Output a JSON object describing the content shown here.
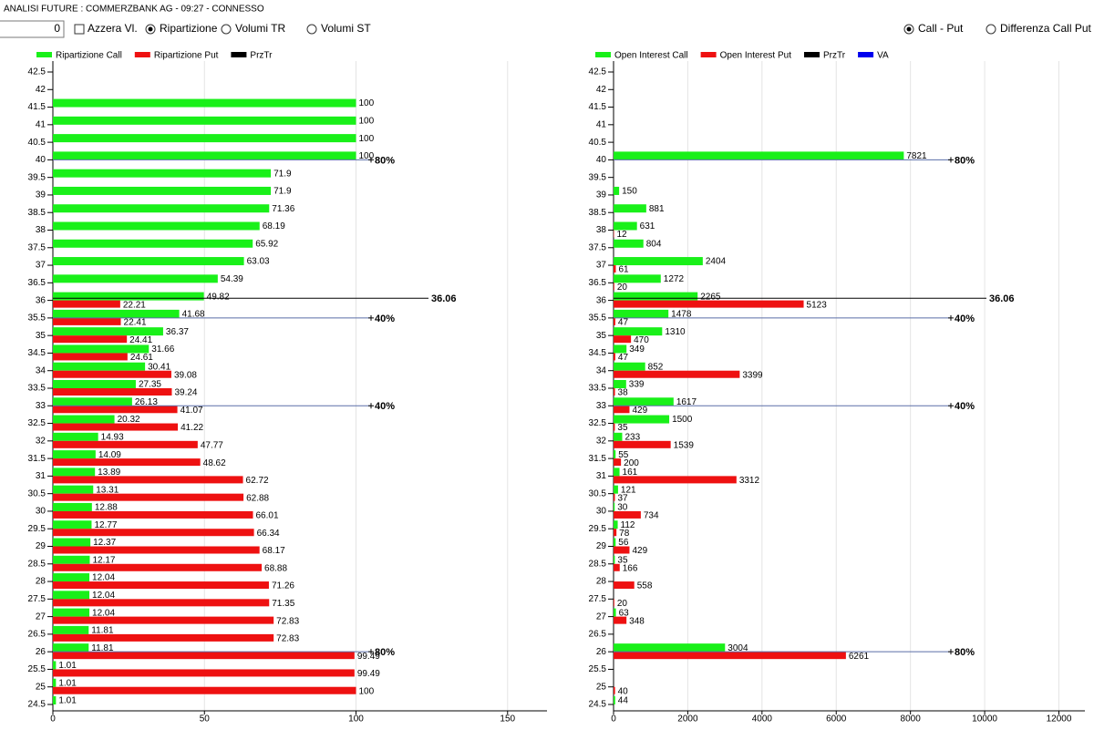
{
  "header": {
    "title": "ANALISI FUTURE : COMMERZBANK AG - 09:27 - CONNESSO"
  },
  "controls": {
    "input": 0,
    "checkbox": {
      "label": "Azzera Vl.",
      "checked": false
    },
    "radios_left": [
      {
        "label": "Ripartizione",
        "checked": true
      },
      {
        "label": "Volumi TR",
        "checked": false
      },
      {
        "label": "Volumi ST",
        "checked": false
      }
    ],
    "radios_right": [
      {
        "label": "Call - Put",
        "checked": true
      },
      {
        "label": "Differenza Call Put",
        "checked": false
      }
    ]
  },
  "chart_data": [
    {
      "type": "hbar",
      "categories": [
        42.5,
        42,
        41.5,
        41,
        40.5,
        40,
        39.5,
        39,
        38.5,
        38,
        37.5,
        37,
        36.5,
        36,
        35.5,
        35,
        34.5,
        34,
        33.5,
        33,
        32.5,
        32,
        31.5,
        31,
        30.5,
        30,
        29.5,
        29,
        28.5,
        28,
        27.5,
        27,
        26.5,
        26,
        25.5,
        25,
        24.5
      ],
      "series": [
        {
          "name": "Ripartizione Call",
          "color": "#19f019",
          "values": [
            null,
            null,
            100,
            100,
            100,
            100,
            71.9,
            71.9,
            71.36,
            68.19,
            65.92,
            63.03,
            54.39,
            49.82,
            41.68,
            36.37,
            31.66,
            30.41,
            27.35,
            26.13,
            20.32,
            14.93,
            14.09,
            13.89,
            13.31,
            12.88,
            12.77,
            12.37,
            12.17,
            12.04,
            12.04,
            12.04,
            11.81,
            11.81,
            1.01,
            1.01,
            1.01
          ]
        },
        {
          "name": "Ripartizione Put",
          "color": "#ee1111",
          "values": [
            null,
            null,
            null,
            null,
            null,
            null,
            null,
            null,
            null,
            null,
            null,
            null,
            null,
            22.21,
            22.41,
            24.41,
            24.61,
            39.08,
            39.24,
            41.07,
            41.22,
            47.77,
            48.62,
            62.72,
            62.88,
            66.01,
            66.34,
            68.17,
            68.88,
            71.26,
            71.35,
            72.83,
            72.83,
            99.49,
            99.49,
            100,
            null
          ]
        }
      ],
      "przTr": {
        "name": "PrzTr",
        "color": "#000000",
        "value": 36.06
      },
      "marker_color": "#5a6ea8",
      "markers": [
        {
          "at": 40,
          "label": "80%"
        },
        {
          "at": 35.5,
          "label": "40%"
        },
        {
          "at": 33,
          "label": "40%"
        },
        {
          "at": 26,
          "label": "80%"
        }
      ],
      "xlim": [
        0,
        163
      ],
      "xticks": [
        0,
        50,
        100,
        150
      ],
      "grid": true
    },
    {
      "type": "hbar",
      "categories": [
        42.5,
        42,
        41.5,
        41,
        40.5,
        40,
        39.5,
        39,
        38.5,
        38,
        37.5,
        37,
        36.5,
        36,
        35.5,
        35,
        34.5,
        34,
        33.5,
        33,
        32.5,
        32,
        31.5,
        31,
        30.5,
        30,
        29.5,
        29,
        28.5,
        28,
        27.5,
        27,
        26.5,
        26,
        25.5,
        25,
        24.5
      ],
      "series": [
        {
          "name": "Open Interest Call",
          "color": "#19f019",
          "values": [
            null,
            null,
            null,
            null,
            null,
            7821,
            null,
            150,
            881,
            631,
            804,
            2404,
            1272,
            2265,
            1478,
            1310,
            349,
            852,
            339,
            1617,
            1500,
            233,
            55,
            161,
            121,
            30,
            112,
            56,
            35,
            null,
            null,
            63,
            null,
            3004,
            null,
            null,
            44
          ]
        },
        {
          "name": "Open Interest Put",
          "color": "#ee1111",
          "values": [
            null,
            null,
            null,
            null,
            null,
            null,
            null,
            null,
            null,
            12,
            null,
            61,
            20,
            5123,
            47,
            470,
            47,
            3399,
            38,
            429,
            35,
            1539,
            200,
            3312,
            37,
            734,
            78,
            429,
            166,
            558,
            20,
            348,
            null,
            6261,
            null,
            40,
            null
          ]
        }
      ],
      "przTr": {
        "name": "PrzTr",
        "color": "#000000",
        "value": 36.06
      },
      "va": {
        "name": "VA",
        "color": "#0000ee"
      },
      "marker_color": "#5a6ea8",
      "markers": [
        {
          "at": 40,
          "label": "80%"
        },
        {
          "at": 35.5,
          "label": "40%"
        },
        {
          "at": 33,
          "label": "40%"
        },
        {
          "at": 26,
          "label": "80%"
        }
      ],
      "xlim": [
        0,
        12700
      ],
      "xticks": [
        0,
        2000,
        4000,
        6000,
        8000,
        10000,
        12000
      ],
      "grid": true
    }
  ]
}
